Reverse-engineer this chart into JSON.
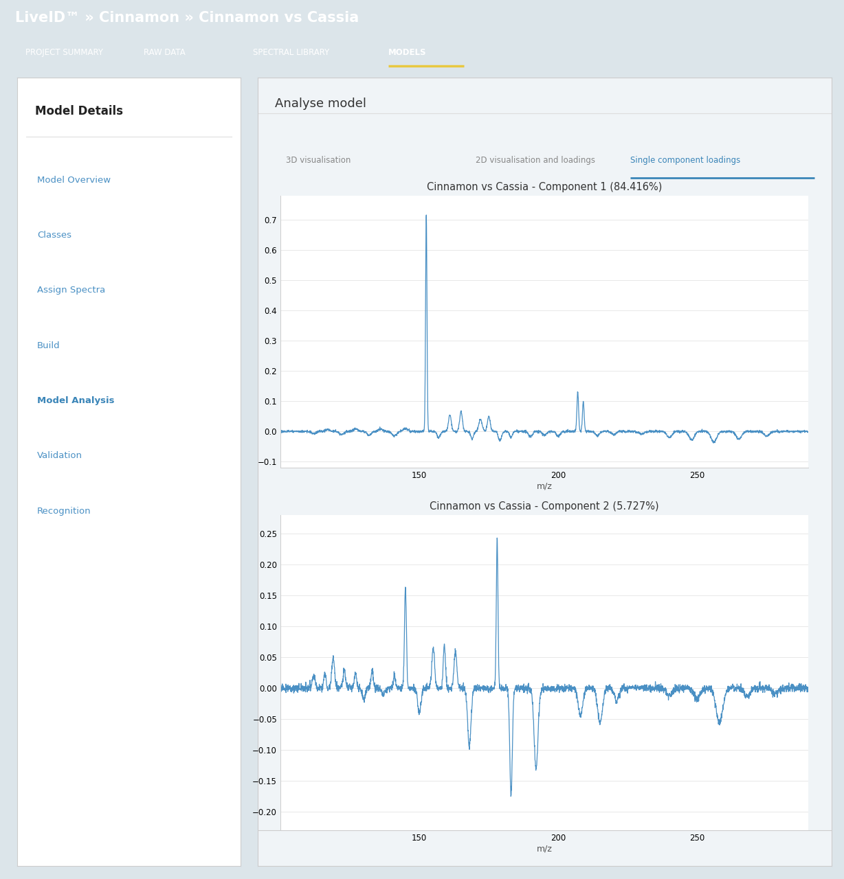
{
  "title": "LiveID™ » Cinnamon » Cinnamon vs Cassia",
  "nav_items": [
    "PROJECT SUMMARY",
    "RAW DATA",
    "SPECTRAL LIBRARY",
    "MODELS"
  ],
  "nav_active": "MODELS",
  "sidebar_title": "Model Details",
  "sidebar_items": [
    "Model Overview",
    "Classes",
    "Assign Spectra",
    "Build",
    "Model Analysis",
    "Validation",
    "Recognition"
  ],
  "sidebar_active": "Model Analysis",
  "section_title": "Analyse model",
  "tabs": [
    "3D visualisation",
    "2D visualisation and loadings",
    "Single component loadings"
  ],
  "active_tab": "Single component loadings",
  "plot1_title": "Cinnamon vs Cassia - Component 1 (84.416%)",
  "plot1_xlabel": "m/z",
  "plot1_ylim": [
    -0.12,
    0.78
  ],
  "plot1_yticks": [
    -0.1,
    0.0,
    0.1,
    0.2,
    0.3,
    0.4,
    0.5,
    0.6,
    0.7
  ],
  "plot2_title": "Cinnamon vs Cassia - Component 2 (5.727%)",
  "plot2_xlabel": "m/z",
  "plot2_ylim": [
    -0.23,
    0.28
  ],
  "plot2_yticks": [
    -0.2,
    -0.15,
    -0.1,
    -0.05,
    0.0,
    0.05,
    0.1,
    0.15,
    0.2,
    0.25
  ],
  "header_bg": "#3d8bbf",
  "header_text_color": "#ffffff",
  "nav_bg": "#4a9fd4",
  "body_bg": "#dce5ea",
  "sidebar_bg": "#ffffff",
  "content_bg": "#f0f4f7",
  "plot_bg": "#ffffff",
  "plot_line_color": "#4a90c4",
  "tab_active_color": "#3a85b8",
  "tab_inactive_color": "#888888",
  "grid_color": "#e8e8e8",
  "x_min": 100,
  "x_max": 290,
  "plot1_xticks": [
    150,
    200,
    250
  ],
  "plot2_xticks": [
    150,
    200,
    250
  ]
}
